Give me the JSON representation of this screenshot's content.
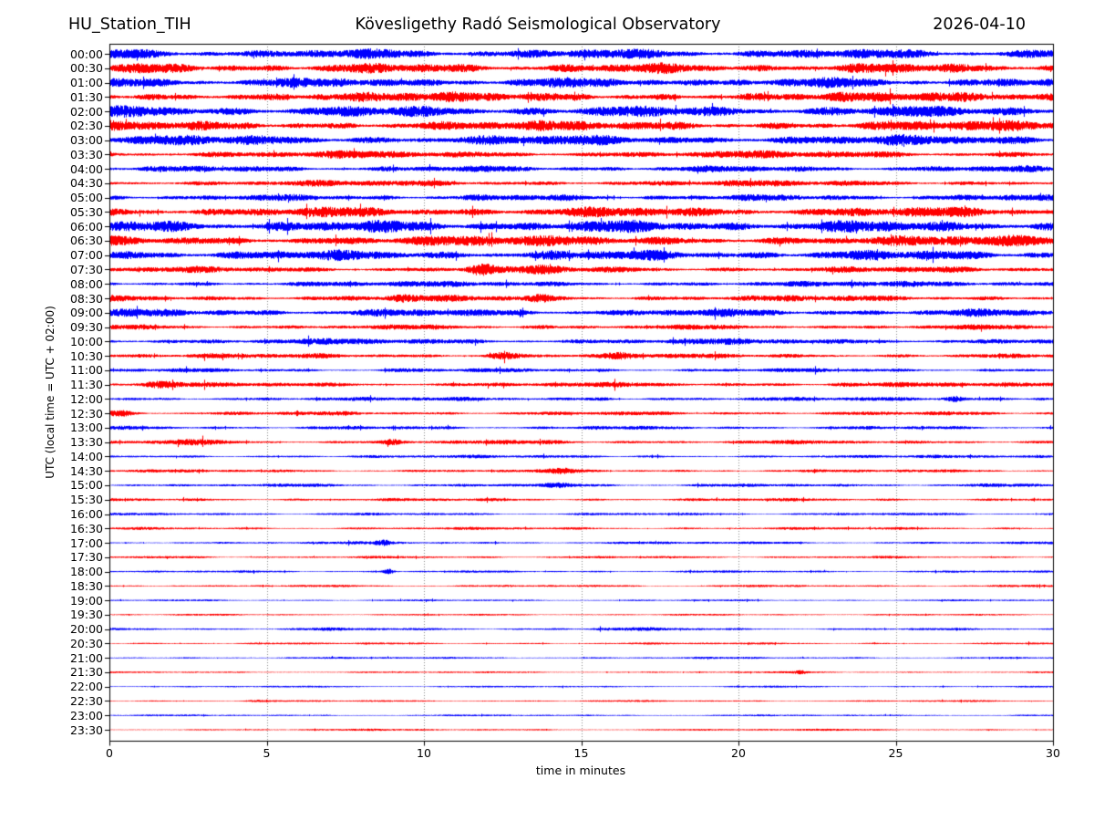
{
  "header": {
    "station": "HU_Station_TIH",
    "title": "Kövesligethy Radó Seismological Observatory",
    "date": "2026-04-10"
  },
  "chart_data": {
    "type": "line",
    "subtype": "helicorder-daily-seismogram",
    "station": "HU_Station_TIH",
    "title": "Kövesligethy Radó Seismological Observatory",
    "date": "2026-04-10",
    "xlabel": "time in minutes",
    "ylabel": "UTC (local time = UTC + 02:00)",
    "xlim": [
      0,
      30
    ],
    "x_ticks": [
      0,
      5,
      10,
      15,
      20,
      25,
      30
    ],
    "minutes_per_row": 30,
    "grid": {
      "vertical_dotted_at": [
        5,
        10,
        15,
        20,
        25
      ],
      "color": "#888888"
    },
    "colors": {
      "even_rows": "#0000ff",
      "odd_rows": "#ff0000",
      "axis": "#000000",
      "text": "#000000"
    },
    "legend": "none",
    "seed": 42,
    "rows": [
      {
        "label": "00:00",
        "color": "#0000ff",
        "amp": 4.5,
        "events": []
      },
      {
        "label": "00:30",
        "color": "#ff0000",
        "amp": 4.5,
        "events": []
      },
      {
        "label": "01:00",
        "color": "#0000ff",
        "amp": 4.5,
        "events": []
      },
      {
        "label": "01:30",
        "color": "#ff0000",
        "amp": 4.4,
        "events": []
      },
      {
        "label": "02:00",
        "color": "#0000ff",
        "amp": 5.0,
        "events": []
      },
      {
        "label": "02:30",
        "color": "#ff0000",
        "amp": 4.5,
        "events": []
      },
      {
        "label": "03:00",
        "color": "#0000ff",
        "amp": 4.6,
        "events": []
      },
      {
        "label": "03:30",
        "color": "#ff0000",
        "amp": 3.4,
        "events": []
      },
      {
        "label": "04:00",
        "color": "#0000ff",
        "amp": 2.9,
        "events": []
      },
      {
        "label": "04:30",
        "color": "#ff0000",
        "amp": 2.8,
        "events": []
      },
      {
        "label": "05:00",
        "color": "#0000ff",
        "amp": 2.9,
        "events": []
      },
      {
        "label": "05:30",
        "color": "#ff0000",
        "amp": 4.6,
        "events": []
      },
      {
        "label": "06:00",
        "color": "#0000ff",
        "amp": 5.4,
        "events": []
      },
      {
        "label": "06:30",
        "color": "#ff0000",
        "amp": 4.8,
        "events": []
      },
      {
        "label": "07:00",
        "color": "#0000ff",
        "amp": 4.6,
        "events": []
      },
      {
        "label": "07:30",
        "color": "#ff0000",
        "amp": 2.8,
        "events": [
          {
            "t": 11.7,
            "boost": 3.4,
            "w": 0.3
          },
          {
            "t": 13.8,
            "boost": 1.7,
            "w": 0.5
          }
        ]
      },
      {
        "label": "08:00",
        "color": "#0000ff",
        "amp": 2.6,
        "events": []
      },
      {
        "label": "08:30",
        "color": "#ff0000",
        "amp": 2.8,
        "events": [
          {
            "t": 9.3,
            "boost": 1.7,
            "w": 0.4
          },
          {
            "t": 13.6,
            "boost": 1.8,
            "w": 0.3
          }
        ]
      },
      {
        "label": "09:00",
        "color": "#0000ff",
        "amp": 3.4,
        "events": []
      },
      {
        "label": "09:30",
        "color": "#ff0000",
        "amp": 2.2,
        "events": [
          {
            "t": 13.8,
            "boost": 1.6,
            "w": 0.3
          }
        ]
      },
      {
        "label": "10:00",
        "color": "#0000ff",
        "amp": 2.7,
        "events": []
      },
      {
        "label": "10:30",
        "color": "#ff0000",
        "amp": 2.2,
        "events": [
          {
            "t": 12.6,
            "boost": 2.5,
            "w": 0.5
          },
          {
            "t": 16.4,
            "boost": 1.7,
            "w": 0.3
          }
        ]
      },
      {
        "label": "11:00",
        "color": "#0000ff",
        "amp": 1.8,
        "events": [
          {
            "t": 9.6,
            "boost": 1.6,
            "w": 0.3
          }
        ]
      },
      {
        "label": "11:30",
        "color": "#ff0000",
        "amp": 2.2,
        "events": [
          {
            "t": 1.5,
            "boost": 1.8,
            "w": 0.4
          },
          {
            "t": 23.4,
            "boost": 1.8,
            "w": 0.3
          }
        ]
      },
      {
        "label": "12:00",
        "color": "#0000ff",
        "amp": 1.8,
        "events": [
          {
            "t": 15.6,
            "boost": 2.4,
            "w": 0.35
          },
          {
            "t": 26.9,
            "boost": 2.7,
            "w": 0.2
          },
          {
            "t": 29.6,
            "boost": 2.3,
            "w": 0.25
          }
        ]
      },
      {
        "label": "12:30",
        "color": "#ff0000",
        "amp": 1.8,
        "events": [
          {
            "t": 0.3,
            "boost": 2.5,
            "w": 0.3
          }
        ]
      },
      {
        "label": "13:00",
        "color": "#0000ff",
        "amp": 1.6,
        "events": [
          {
            "t": 15.5,
            "boost": 1.8,
            "w": 0.3
          }
        ]
      },
      {
        "label": "13:30",
        "color": "#ff0000",
        "amp": 1.8,
        "events": [
          {
            "t": 2.6,
            "boost": 2.0,
            "w": 0.4
          },
          {
            "t": 9.0,
            "boost": 2.3,
            "w": 0.25
          },
          {
            "t": 14.0,
            "boost": 1.9,
            "w": 0.3
          }
        ]
      },
      {
        "label": "14:00",
        "color": "#0000ff",
        "amp": 1.4,
        "events": []
      },
      {
        "label": "14:30",
        "color": "#ff0000",
        "amp": 1.4,
        "events": [
          {
            "t": 14.5,
            "boost": 2.3,
            "w": 0.3
          }
        ]
      },
      {
        "label": "15:00",
        "color": "#0000ff",
        "amp": 1.5,
        "events": [
          {
            "t": 14.2,
            "boost": 1.8,
            "w": 0.4
          }
        ]
      },
      {
        "label": "15:30",
        "color": "#ff0000",
        "amp": 1.4,
        "events": []
      },
      {
        "label": "16:00",
        "color": "#0000ff",
        "amp": 1.2,
        "events": []
      },
      {
        "label": "16:30",
        "color": "#ff0000",
        "amp": 1.2,
        "events": []
      },
      {
        "label": "17:00",
        "color": "#0000ff",
        "amp": 1.2,
        "events": [
          {
            "t": 8.7,
            "boost": 3.2,
            "w": 0.18
          }
        ]
      },
      {
        "label": "17:30",
        "color": "#ff0000",
        "amp": 1.1,
        "events": []
      },
      {
        "label": "18:00",
        "color": "#0000ff",
        "amp": 1.0,
        "events": [
          {
            "t": 8.9,
            "boost": 4.8,
            "w": 0.12
          }
        ]
      },
      {
        "label": "18:30",
        "color": "#ff0000",
        "amp": 1.0,
        "events": []
      },
      {
        "label": "19:00",
        "color": "#0000ff",
        "amp": 0.8,
        "events": []
      },
      {
        "label": "19:30",
        "color": "#ff0000",
        "amp": 0.8,
        "events": []
      },
      {
        "label": "20:00",
        "color": "#0000ff",
        "amp": 1.0,
        "events": [
          {
            "t": 6.5,
            "boost": 1.8,
            "w": 1.2
          },
          {
            "t": 16.0,
            "boost": 1.7,
            "w": 2.0
          }
        ]
      },
      {
        "label": "20:30",
        "color": "#ff0000",
        "amp": 0.9,
        "events": []
      },
      {
        "label": "21:00",
        "color": "#0000ff",
        "amp": 0.9,
        "events": []
      },
      {
        "label": "21:30",
        "color": "#ff0000",
        "amp": 0.8,
        "events": [
          {
            "t": 22.0,
            "boost": 2.8,
            "w": 0.15
          }
        ]
      },
      {
        "label": "22:00",
        "color": "#0000ff",
        "amp": 0.8,
        "events": []
      },
      {
        "label": "22:30",
        "color": "#ff0000",
        "amp": 0.8,
        "events": [
          {
            "t": 4.5,
            "boost": 2.0,
            "w": 0.4
          }
        ]
      },
      {
        "label": "23:00",
        "color": "#0000ff",
        "amp": 0.8,
        "events": []
      },
      {
        "label": "23:30",
        "color": "#ff0000",
        "amp": 0.9,
        "events": []
      }
    ]
  }
}
